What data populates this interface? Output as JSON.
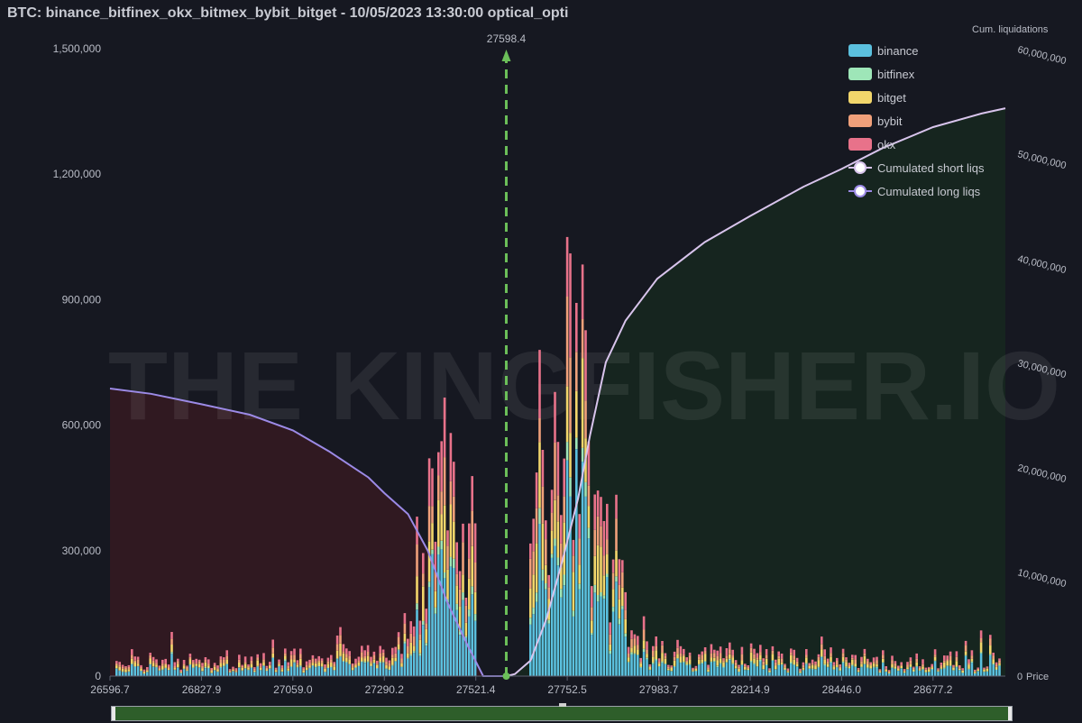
{
  "title": "BTC: binance_bitfinex_okx_bitmex_bybit_bitget - 10/05/2023 13:30:00 optical_opti",
  "chart_data": {
    "type": "bar",
    "stacked": true,
    "current_price": 27598.4,
    "current_price_label": "27598.4",
    "right_axis_title": "Cum. liquidations",
    "x_axis_label": "Price",
    "x_range": [
      26596.7,
      28860
    ],
    "x_ticks": [
      "26596.7",
      "26827.9",
      "27059.0",
      "27290.2",
      "27521.4",
      "27752.5",
      "27983.7",
      "28214.9",
      "28446.0",
      "28677.2"
    ],
    "x_tick_values": [
      26596.7,
      26827.9,
      27059.0,
      27290.2,
      27521.4,
      27752.5,
      27983.7,
      28214.9,
      28446.0,
      28677.2
    ],
    "left_axis": {
      "ylim": [
        0,
        1500000
      ],
      "ticks": [
        "0",
        "300,000",
        "600,000",
        "900,000",
        "1,200,000",
        "1,500,000"
      ],
      "tick_values": [
        0,
        300000,
        600000,
        900000,
        1200000,
        1500000
      ]
    },
    "right_axis": {
      "ylim": [
        0,
        60000000
      ],
      "ticks": [
        "0",
        "10,000,000",
        "20,000,000",
        "30,000,000",
        "40,000,000",
        "50,000,000",
        "60,000,000"
      ],
      "tick_values": [
        0,
        10000000,
        20000000,
        30000000,
        40000000,
        50000000,
        60000000
      ]
    },
    "legend_position": "top-right",
    "bar_series": [
      {
        "name": "binance",
        "color": "#5bc0de"
      },
      {
        "name": "bitfinex",
        "color": "#9ee6b8"
      },
      {
        "name": "bitget",
        "color": "#f2d66b"
      },
      {
        "name": "bybit",
        "color": "#f0a07a"
      },
      {
        "name": "okx",
        "color": "#e8728a"
      }
    ],
    "line_series": [
      {
        "name": "Cumulated short liqs",
        "color": "#d8c4ec",
        "points": [
          [
            27598.4,
            0
          ],
          [
            27620,
            200000
          ],
          [
            27660,
            1500000
          ],
          [
            27700,
            5500000
          ],
          [
            27740,
            11000000
          ],
          [
            27780,
            17000000
          ],
          [
            27810,
            23000000
          ],
          [
            27850,
            30000000
          ],
          [
            27900,
            34000000
          ],
          [
            27980,
            38000000
          ],
          [
            28100,
            41500000
          ],
          [
            28214.9,
            44000000
          ],
          [
            28350,
            46800000
          ],
          [
            28446.0,
            48500000
          ],
          [
            28550,
            50500000
          ],
          [
            28677.2,
            52500000
          ],
          [
            28800,
            53800000
          ],
          [
            28860,
            54300000
          ]
        ]
      },
      {
        "name": "Cumulated long liqs",
        "color": "#9c8ae6",
        "points": [
          [
            26596.7,
            27500000
          ],
          [
            26700,
            27000000
          ],
          [
            26827.9,
            26000000
          ],
          [
            26950,
            25000000
          ],
          [
            27059.0,
            23500000
          ],
          [
            27150,
            21500000
          ],
          [
            27250,
            19000000
          ],
          [
            27290.2,
            17500000
          ],
          [
            27350,
            15500000
          ],
          [
            27400,
            12000000
          ],
          [
            27450,
            7000000
          ],
          [
            27500,
            3000000
          ],
          [
            27540,
            0
          ],
          [
            27598.4,
            0
          ]
        ]
      }
    ],
    "watermark": "THE KINGFISHER.IO"
  }
}
